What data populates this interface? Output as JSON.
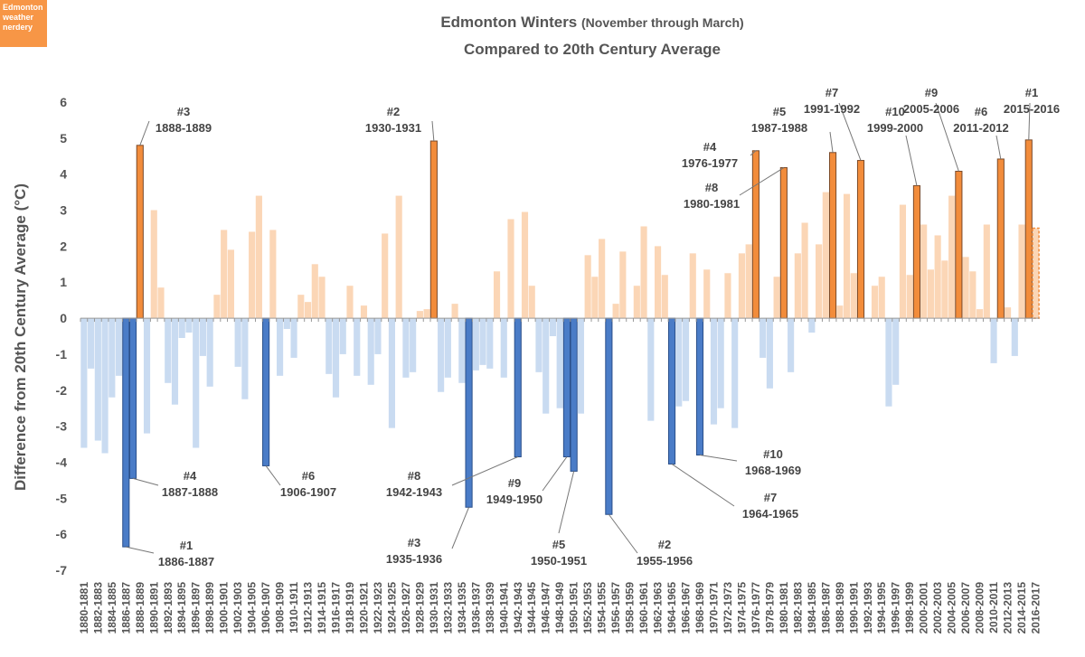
{
  "chart_data": {
    "type": "bar",
    "badge": "Edmonton weather nerdery",
    "title": "Edmonton Winters",
    "title_note": "(November through March)",
    "subtitle": "Compared to 20th Century Average",
    "y_label": "Difference from 20th Century Average (°C)",
    "ylim": [
      -7,
      6
    ],
    "yticks": [
      -7,
      -6,
      -5,
      -4,
      -3,
      -2,
      -1,
      0,
      1,
      2,
      3,
      4,
      5,
      6
    ],
    "categories": [
      "1880-1881",
      null,
      "1882-1883",
      null,
      "1884-1885",
      null,
      "1886-1887",
      null,
      "1888-1889",
      null,
      "1890-1891",
      null,
      "1892-1893",
      null,
      "1894-1895",
      null,
      "1896-1897",
      null,
      "1898-1899",
      null,
      "1900-1901",
      null,
      "1902-1903",
      null,
      "1904-1905",
      null,
      "1906-1907",
      null,
      "1908-1909",
      null,
      "1910-1911",
      null,
      "1912-1913",
      null,
      "1914-1915",
      null,
      "1916-1917",
      null,
      "1918-1919",
      null,
      "1920-1921",
      null,
      "1922-1923",
      null,
      "1924-1925",
      null,
      "1926-1927",
      null,
      "1928-1929",
      null,
      "1930-1931",
      null,
      "1932-1933",
      null,
      "1934-1935",
      null,
      "1936-1937",
      null,
      "1938-1939",
      null,
      "1940-1941",
      null,
      "1942-1943",
      null,
      "1944-1945",
      null,
      "1946-1947",
      null,
      "1948-1949",
      null,
      "1950-1951",
      null,
      "1952-1953",
      null,
      "1954-1955",
      null,
      "1956-1957",
      null,
      "1958-1959",
      null,
      "1960-1961",
      null,
      "1962-1963",
      null,
      "1964-1965",
      null,
      "1966-1967",
      null,
      "1968-1969",
      null,
      "1970-1971",
      null,
      "1972-1973",
      null,
      "1974-1975",
      null,
      "1976-1977",
      null,
      "1978-1979",
      null,
      "1980-1981",
      null,
      "1982-1983",
      null,
      "1984-1985",
      null,
      "1986-1987",
      null,
      "1988-1989",
      null,
      "1990-1991",
      null,
      "1992-1993",
      null,
      "1994-1995",
      null,
      "1996-1997",
      null,
      "1998-1999",
      null,
      "2000-2001",
      null,
      "2002-2003",
      null,
      "2004-2005",
      null,
      "2006-2007",
      null,
      "2008-2009",
      null,
      "2010-2011",
      null,
      "2012-2013",
      null,
      "2014-2015",
      null,
      "2016-2017"
    ],
    "values": [
      -3.6,
      -1.4,
      -3.4,
      -3.75,
      -2.2,
      -1.6,
      -6.35,
      -4.45,
      4.8,
      -3.2,
      3.0,
      0.85,
      -1.8,
      -2.4,
      -0.55,
      -0.4,
      -3.6,
      -1.05,
      -1.9,
      0.65,
      2.45,
      1.9,
      -1.35,
      -2.25,
      2.4,
      3.4,
      -4.1,
      2.45,
      -1.6,
      -0.3,
      -1.1,
      0.65,
      0.45,
      1.5,
      1.15,
      -1.55,
      -2.2,
      -1.0,
      0.9,
      -1.6,
      0.35,
      -1.85,
      -1.0,
      2.35,
      -3.05,
      3.4,
      -1.65,
      -1.5,
      0.2,
      0.25,
      4.92,
      -2.05,
      -1.65,
      0.4,
      -1.8,
      -5.25,
      -1.45,
      -1.3,
      -1.4,
      1.3,
      -1.65,
      2.75,
      -3.85,
      2.95,
      0.9,
      -1.5,
      -2.65,
      -0.5,
      -2.5,
      -3.85,
      -4.25,
      -2.65,
      1.75,
      1.15,
      2.2,
      -5.45,
      0.4,
      1.85,
      0,
      0.9,
      2.55,
      -2.85,
      2.0,
      1.2,
      -4.05,
      -2.45,
      -2.3,
      1.8,
      -3.8,
      1.35,
      -2.95,
      -2.5,
      1.25,
      -3.05,
      1.8,
      2.05,
      4.65,
      -1.1,
      -1.95,
      1.15,
      4.18,
      -1.5,
      1.8,
      2.65,
      -0.4,
      2.05,
      3.5,
      4.6,
      0.35,
      3.45,
      1.25,
      4.38,
      0,
      0.9,
      1.15,
      -2.45,
      -1.85,
      3.15,
      1.2,
      3.68,
      2.6,
      1.35,
      2.3,
      1.6,
      3.4,
      4.08,
      1.7,
      1.3,
      0.25,
      2.6,
      -1.25,
      4.42,
      0.3,
      -1.05,
      2.6,
      4.95,
      2.5
    ],
    "colors": {
      "warm": "#f28c3b",
      "warm_light": "#fbd6b6",
      "cold": "#4a7cc7",
      "cold_light": "#c9dbf1",
      "outline": "#7a4a2a"
    },
    "provisional_last": true,
    "annotations": [
      {
        "rank": "#3",
        "period": "1888-1889"
      },
      {
        "rank": "#2",
        "period": "1930-1931"
      },
      {
        "rank": "#4",
        "period": "1976-1977"
      },
      {
        "rank": "#8",
        "period": "1980-1981"
      },
      {
        "rank": "#5",
        "period": "1987-1988"
      },
      {
        "rank": "#7",
        "period": "1991-1992"
      },
      {
        "rank": "#10",
        "period": "1999-2000"
      },
      {
        "rank": "#9",
        "period": "2005-2006"
      },
      {
        "rank": "#6",
        "period": "2011-2012"
      },
      {
        "rank": "#1",
        "period": "2015-2016"
      },
      {
        "rank": "#1",
        "period": "1886-1887"
      },
      {
        "rank": "#4",
        "period": "1887-1888"
      },
      {
        "rank": "#6",
        "period": "1906-1907"
      },
      {
        "rank": "#8",
        "period": "1942-1943"
      },
      {
        "rank": "#3",
        "period": "1935-1936"
      },
      {
        "rank": "#9",
        "period": "1949-1950"
      },
      {
        "rank": "#5",
        "period": "1950-1951"
      },
      {
        "rank": "#2",
        "period": "1955-1956"
      },
      {
        "rank": "#7",
        "period": "1964-1965"
      },
      {
        "rank": "#10",
        "period": "1968-1969"
      }
    ]
  }
}
